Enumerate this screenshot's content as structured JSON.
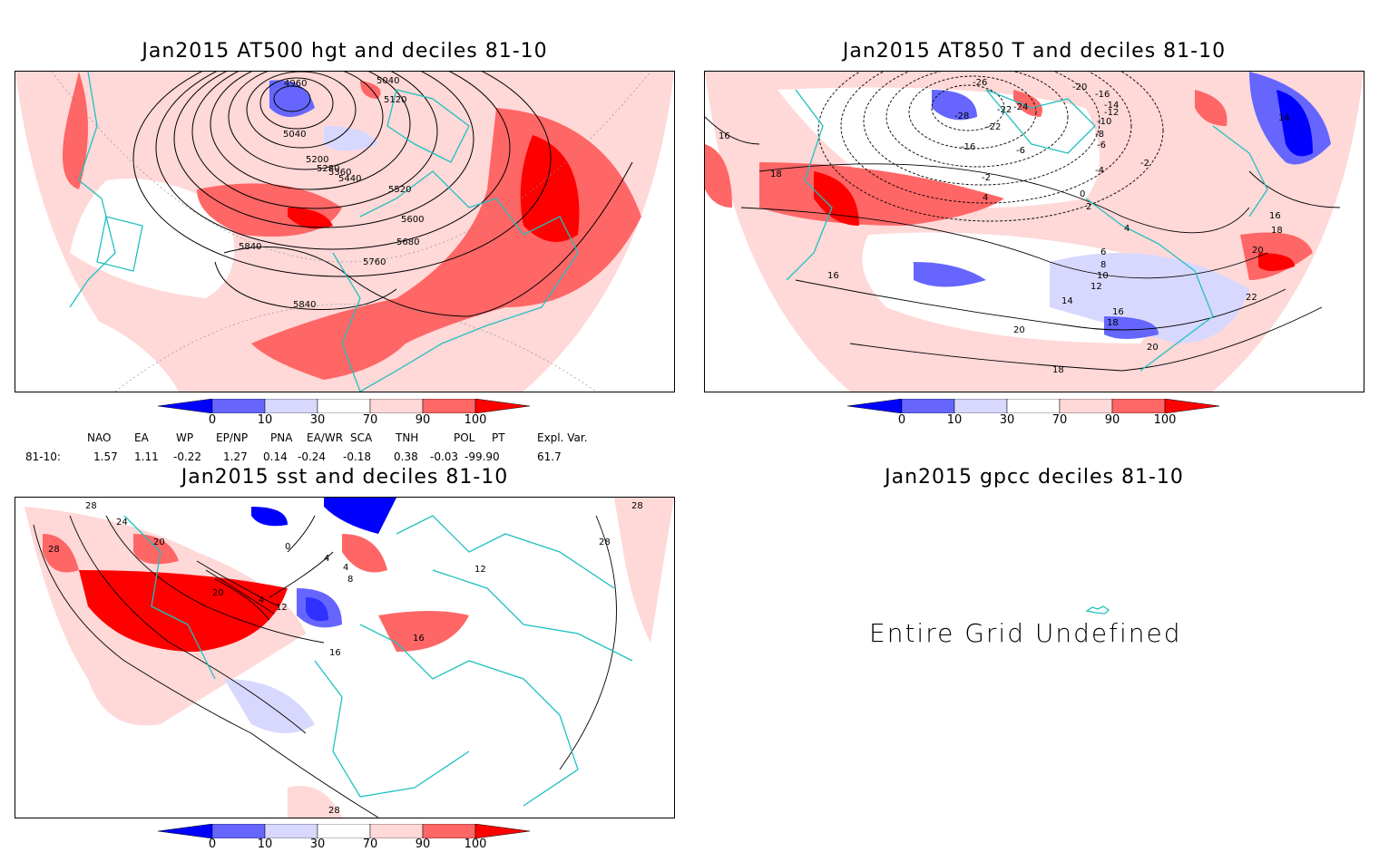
{
  "panels": {
    "tl": {
      "title": "Jan2015 AT500 hgt and deciles 81-10",
      "contour_labels": [
        "4960",
        "5040",
        "5040",
        "5120",
        "5200",
        "5280",
        "5360",
        "5440",
        "5520",
        "5600",
        "5680",
        "5760",
        "5840",
        "5840"
      ]
    },
    "tr": {
      "title": "Jan2015 AT850 T and deciles 81-10",
      "contour_labels": [
        "-26",
        "-28",
        "-22",
        "-24",
        "-22",
        "-20",
        "-16",
        "-16",
        "-14",
        "-12",
        "-10",
        "-8",
        "-6",
        "-6",
        "-4",
        "-2",
        "-2",
        "0",
        "2",
        "4",
        "4",
        "6",
        "8",
        "10",
        "12",
        "14",
        "14",
        "16",
        "16",
        "16",
        "16",
        "18",
        "18",
        "18",
        "18",
        "20",
        "20",
        "20",
        "22"
      ]
    },
    "bl": {
      "title": "Jan2015 sst and deciles 81-10",
      "contour_labels": [
        "28",
        "28",
        "28",
        "24",
        "20",
        "20",
        "0",
        "4",
        "4",
        "8",
        "4",
        "12",
        "16",
        "16",
        "12",
        "28",
        "28"
      ]
    },
    "br": {
      "title": "Jan2015 gpcc deciles 81-10",
      "message": "Entire Grid Undefined"
    }
  },
  "colorbar": {
    "labels": [
      "0",
      "10",
      "30",
      "70",
      "90",
      "100"
    ],
    "colors": [
      "#0000ff",
      "#6666ff",
      "#d8d8ff",
      "#ffffff",
      "#ffd8d8",
      "#ff6666",
      "#ff0000"
    ]
  },
  "indices": {
    "header": [
      "NAO",
      "EA",
      "WP",
      "EP/NP",
      "PNA",
      "EA/WR",
      "SCA",
      "TNH",
      "POL",
      "PT",
      "Expl. Var."
    ],
    "row_label": "81-10:",
    "values": [
      "1.57",
      "1.11",
      "-0.22",
      "1.27",
      "0.14",
      "-0.24",
      "-0.18",
      "0.38",
      "-0.03",
      "-99.90",
      "61.7"
    ]
  }
}
